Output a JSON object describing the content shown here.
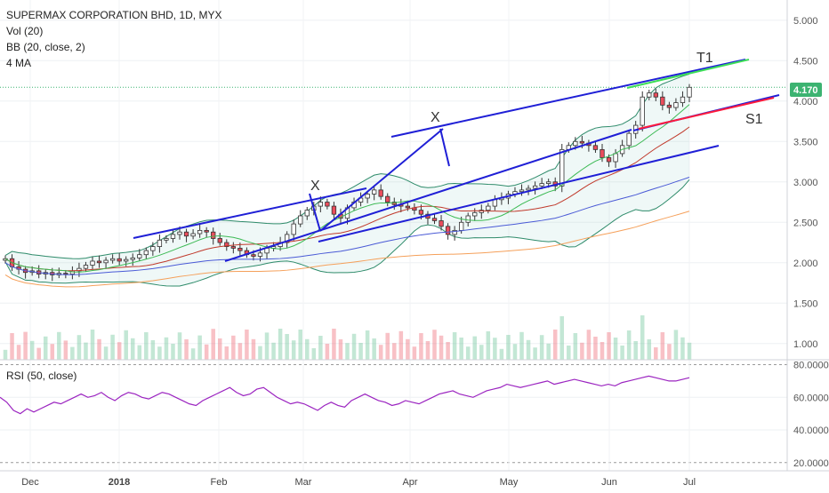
{
  "header": {
    "symbol_line": "SUPERMAX CORPORATION BHD, 1D, MYX",
    "volume_label": "Vol (20)",
    "bb_label": "BB (20, close, 2)",
    "ma_label": "4 MA"
  },
  "rsi_panel": {
    "label": "RSI (50, close)"
  },
  "colors": {
    "up": "#53b987",
    "down": "#eb4d5c",
    "trendline": "#1f1fd6",
    "support_red": "#ff1a3c",
    "target_green": "#3dde58",
    "rsi": "#9b24c0",
    "price_tag": "#3cb371"
  },
  "annotations": {
    "x_upper": "X",
    "x_lower": "X",
    "t1": "T1",
    "s1": "S1"
  },
  "price_tag": "4.170",
  "chart_data": [
    {
      "type": "candlestick",
      "title": "SUPERMAX CORPORATION BHD, 1D, MYX",
      "y_axis_ticks": [
        "5.000",
        "4.500",
        "4.000",
        "3.500",
        "3.000",
        "2.500",
        "2.000",
        "1.500",
        "1.000"
      ],
      "ylim": [
        0.8,
        5.25
      ],
      "x_axis_ticks": [
        "Dec",
        "2018",
        "Feb",
        "Mar",
        "Apr",
        "May",
        "Jun",
        "Jul"
      ],
      "last_price": 4.17,
      "closes": [
        2.05,
        1.95,
        1.92,
        1.88,
        1.9,
        1.86,
        1.88,
        1.85,
        1.87,
        1.86,
        1.9,
        1.93,
        1.97,
        2.02,
        2.0,
        2.03,
        2.05,
        2.02,
        2.04,
        2.06,
        2.1,
        2.15,
        2.2,
        2.28,
        2.3,
        2.35,
        2.38,
        2.33,
        2.36,
        2.4,
        2.38,
        2.3,
        2.25,
        2.2,
        2.18,
        2.15,
        2.1,
        2.08,
        2.12,
        2.18,
        2.2,
        2.25,
        2.35,
        2.48,
        2.58,
        2.65,
        2.7,
        2.75,
        2.7,
        2.6,
        2.55,
        2.68,
        2.75,
        2.8,
        2.85,
        2.9,
        2.82,
        2.75,
        2.72,
        2.7,
        2.68,
        2.65,
        2.6,
        2.55,
        2.52,
        2.45,
        2.35,
        2.4,
        2.5,
        2.58,
        2.62,
        2.65,
        2.7,
        2.78,
        2.8,
        2.85,
        2.88,
        2.9,
        2.92,
        2.95,
        2.98,
        3.0,
        2.95,
        3.4,
        3.45,
        3.5,
        3.48,
        3.45,
        3.4,
        3.3,
        3.25,
        3.35,
        3.45,
        3.6,
        3.7,
        4.05,
        4.1,
        4.05,
        3.95,
        3.92,
        3.98,
        4.05,
        4.17
      ]
    },
    {
      "type": "line",
      "title": "RSI (50, close)",
      "y_axis_ticks": [
        "80.0000",
        "60.0000",
        "40.0000",
        "20.0000"
      ],
      "ylim": [
        15,
        83
      ],
      "values": [
        60,
        57,
        52,
        50,
        53,
        51,
        53,
        55,
        57,
        56,
        58,
        60,
        62,
        60,
        61,
        63,
        60,
        58,
        61,
        63,
        62,
        60,
        59,
        61,
        63,
        62,
        60,
        58,
        56,
        55,
        58,
        60,
        62,
        64,
        66,
        63,
        61,
        62,
        65,
        66,
        63,
        60,
        58,
        56,
        57,
        56,
        54,
        52,
        55,
        57,
        55,
        54,
        58,
        60,
        62,
        60,
        58,
        57,
        55,
        56,
        58,
        57,
        56,
        58,
        60,
        62,
        63,
        64,
        62,
        61,
        60,
        62,
        64,
        65,
        66,
        68,
        67,
        66,
        67,
        68,
        69,
        70,
        68,
        69,
        70,
        71,
        70,
        69,
        68,
        67,
        68,
        67,
        69,
        70,
        71,
        72,
        73,
        72,
        71,
        70,
        70,
        71,
        72
      ]
    }
  ]
}
